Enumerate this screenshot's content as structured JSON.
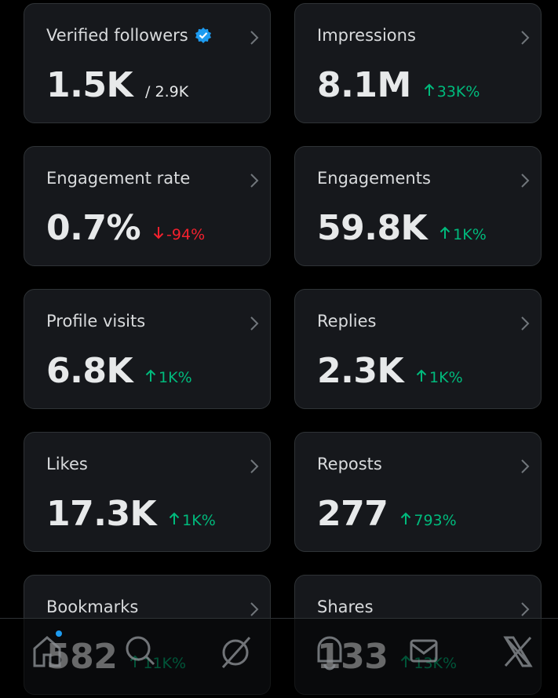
{
  "cards": [
    {
      "label": "Verified followers",
      "value": "1.5K",
      "total": "/ 2.9K",
      "verified": true
    },
    {
      "label": "Impressions",
      "value": "8.1M",
      "change": "33K%",
      "direction": "up"
    },
    {
      "label": "Engagement rate",
      "value": "0.7%",
      "change": "-94%",
      "direction": "down"
    },
    {
      "label": "Engagements",
      "value": "59.8K",
      "change": "1K%",
      "direction": "up"
    },
    {
      "label": "Profile visits",
      "value": "6.8K",
      "change": "1K%",
      "direction": "up"
    },
    {
      "label": "Replies",
      "value": "2.3K",
      "change": "1K%",
      "direction": "up"
    },
    {
      "label": "Likes",
      "value": "17.3K",
      "change": "1K%",
      "direction": "up"
    },
    {
      "label": "Reposts",
      "value": "277",
      "change": "793%",
      "direction": "up"
    },
    {
      "label": "Bookmarks",
      "value": "582",
      "change": "11K%",
      "direction": "up"
    },
    {
      "label": "Shares",
      "value": "133",
      "change": "13K%",
      "direction": "up"
    }
  ]
}
